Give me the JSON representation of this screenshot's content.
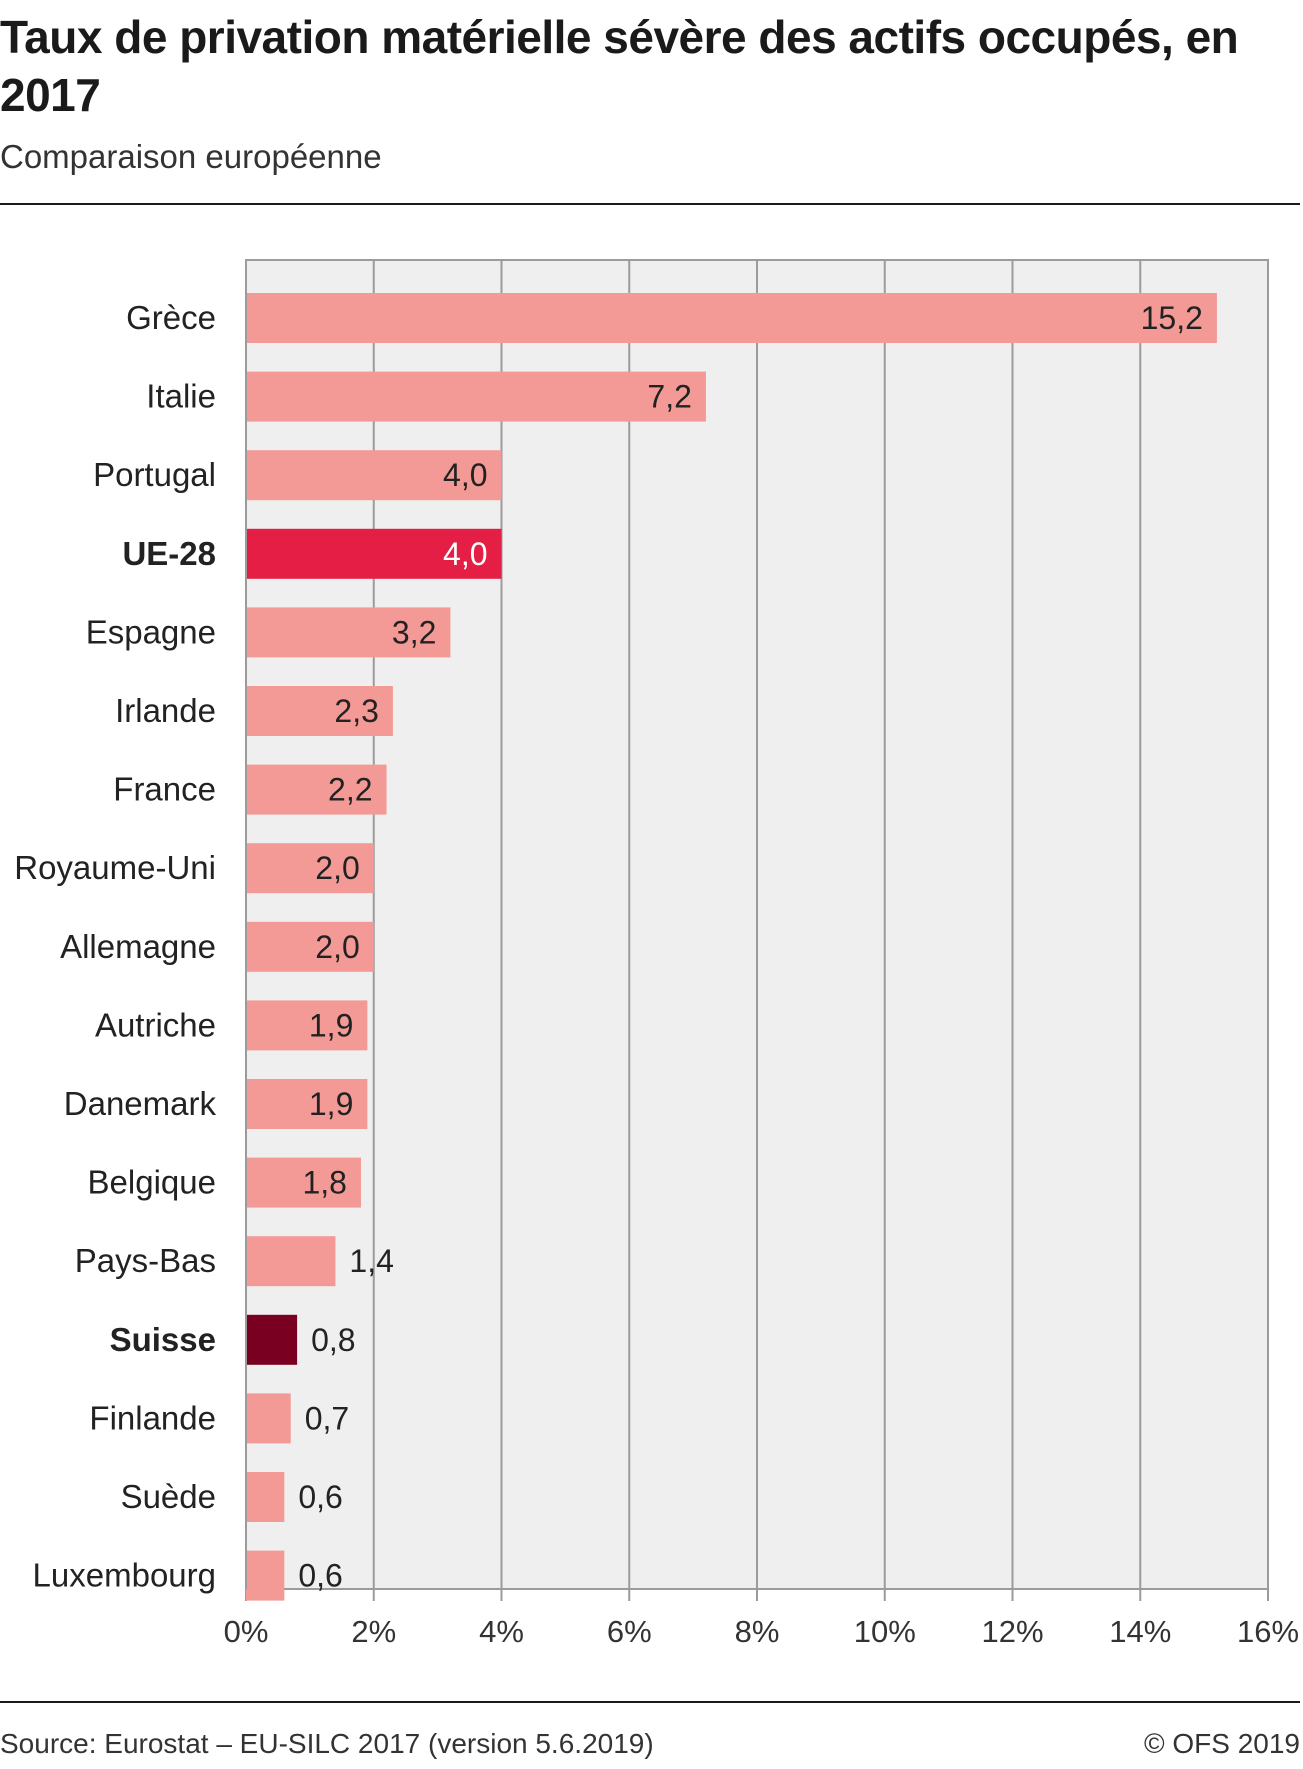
{
  "header": {
    "title": "Taux de privation matérielle sévère des actifs occupés, en 2017",
    "subtitle": "Comparaison européenne"
  },
  "footer": {
    "source": "Source: Eurostat – EU-SILC 2017 (version 5.6.2019)",
    "copyright": "© OFS 2019"
  },
  "colors": {
    "default": "#f39a96",
    "ue28": "#e41e44",
    "suisse": "#7a0021",
    "plot_bg": "#efefef",
    "grid": "#9b9b9b"
  },
  "chart_data": {
    "type": "bar",
    "orientation": "horizontal",
    "categories": [
      "Grèce",
      "Italie",
      "Portugal",
      "UE-28",
      "Espagne",
      "Irlande",
      "France",
      "Royaume-Uni",
      "Allemagne",
      "Autriche",
      "Danemark",
      "Belgique",
      "Pays-Bas",
      "Suisse",
      "Finlande",
      "Suède",
      "Luxembourg"
    ],
    "values": [
      15.2,
      7.2,
      4.0,
      4.0,
      3.2,
      2.3,
      2.2,
      2.0,
      2.0,
      1.9,
      1.9,
      1.8,
      1.4,
      0.8,
      0.7,
      0.6,
      0.6
    ],
    "value_labels": [
      "15,2",
      "7,2",
      "4,0",
      "4,0",
      "3,2",
      "2,3",
      "2,2",
      "2,0",
      "2,0",
      "1,9",
      "1,9",
      "1,8",
      "1,4",
      "0,8",
      "0,7",
      "0,6",
      "0,6"
    ],
    "highlight": {
      "UE-28": "ue28",
      "Suisse": "suisse"
    },
    "bold_categories": [
      "UE-28",
      "Suisse"
    ],
    "xlim": [
      0,
      16
    ],
    "xticks": [
      0,
      2,
      4,
      6,
      8,
      10,
      12,
      14,
      16
    ],
    "xtick_labels": [
      "0%",
      "2%",
      "4%",
      "6%",
      "8%",
      "10%",
      "12%",
      "14%",
      "16%"
    ],
    "grid": true,
    "legend": "none"
  }
}
